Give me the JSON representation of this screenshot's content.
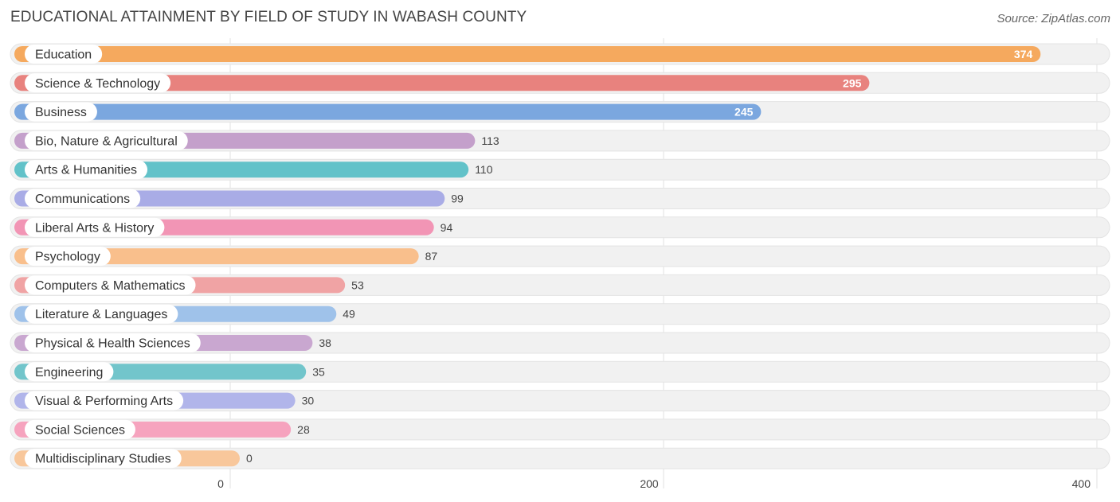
{
  "title": "EDUCATIONAL ATTAINMENT BY FIELD OF STUDY IN WABASH COUNTY",
  "source": "Source: ZipAtlas.com",
  "chart_data": {
    "type": "bar",
    "orientation": "horizontal",
    "title": "EDUCATIONAL ATTAINMENT BY FIELD OF STUDY IN WABASH COUNTY",
    "categories": [
      "Education",
      "Science & Technology",
      "Business",
      "Bio, Nature & Agricultural",
      "Arts & Humanities",
      "Communications",
      "Liberal Arts & History",
      "Psychology",
      "Computers & Mathematics",
      "Literature & Languages",
      "Physical & Health Sciences",
      "Engineering",
      "Visual & Performing Arts",
      "Social Sciences",
      "Multidisciplinary Studies"
    ],
    "values": [
      374,
      295,
      245,
      113,
      110,
      99,
      94,
      87,
      53,
      49,
      38,
      35,
      30,
      28,
      0
    ],
    "value_labels": [
      "374",
      "295",
      "245",
      "113",
      "110",
      "99",
      "94",
      "87",
      "53",
      "49",
      "38",
      "35",
      "30",
      "28",
      "0"
    ],
    "colors": [
      "#f5a95e",
      "#e8827e",
      "#7ba7df",
      "#c4a0cb",
      "#62c2c9",
      "#a9ace6",
      "#f295b5",
      "#f9bf8c",
      "#f0a3a4",
      "#9fc2ea",
      "#c9a7d0",
      "#72c5cb",
      "#b1b5ea",
      "#f6a3be",
      "#f8c79b"
    ],
    "xlim": [
      0,
      400
    ],
    "xticks": [
      0,
      200,
      400
    ],
    "xtick_labels": [
      "0",
      "200",
      "400"
    ],
    "grid": true
  }
}
